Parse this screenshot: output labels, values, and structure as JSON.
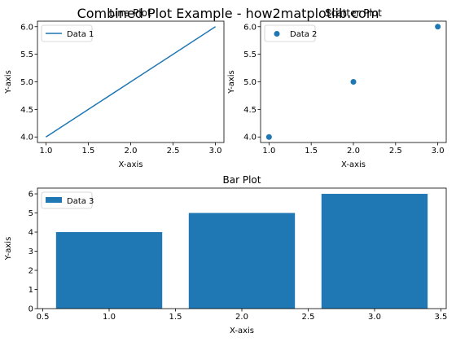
{
  "suptitle": "Combined Plot Example - how2matplotlib.com",
  "chart_data": [
    {
      "type": "line",
      "title": "Line Plot",
      "xlabel": "X-axis",
      "ylabel": "Y-axis",
      "x": [
        1,
        2,
        3
      ],
      "series": [
        {
          "name": "Data 1",
          "values": [
            4,
            5,
            6
          ],
          "color": "#1f77b4"
        }
      ],
      "xlim": [
        0.9,
        3.1
      ],
      "ylim": [
        3.9,
        6.1
      ],
      "xticks": [
        1.0,
        1.5,
        2.0,
        2.5,
        3.0
      ],
      "xtick_labels": [
        "1.0",
        "1.5",
        "2.0",
        "2.5",
        "3.0"
      ],
      "yticks": [
        4.0,
        4.5,
        5.0,
        5.5,
        6.0
      ],
      "ytick_labels": [
        "4.0",
        "4.5",
        "5.0",
        "5.5",
        "6.0"
      ],
      "legend": "top-left",
      "grid": false
    },
    {
      "type": "scatter",
      "title": "Scatter Plot",
      "xlabel": "X-axis",
      "ylabel": "Y-axis",
      "x": [
        1,
        2,
        3
      ],
      "series": [
        {
          "name": "Data 2",
          "values": [
            4,
            5,
            6
          ],
          "color": "#1f77b4"
        }
      ],
      "xlim": [
        0.9,
        3.1
      ],
      "ylim": [
        3.9,
        6.1
      ],
      "xticks": [
        1.0,
        1.5,
        2.0,
        2.5,
        3.0
      ],
      "xtick_labels": [
        "1.0",
        "1.5",
        "2.0",
        "2.5",
        "3.0"
      ],
      "yticks": [
        4.0,
        4.5,
        5.0,
        5.5,
        6.0
      ],
      "ytick_labels": [
        "4.0",
        "4.5",
        "5.0",
        "5.5",
        "6.0"
      ],
      "legend": "top-left",
      "grid": false
    },
    {
      "type": "bar",
      "title": "Bar Plot",
      "xlabel": "X-axis",
      "ylabel": "Y-axis",
      "x": [
        1,
        2,
        3
      ],
      "series": [
        {
          "name": "Data 3",
          "values": [
            4,
            5,
            6
          ],
          "color": "#1f77b4"
        }
      ],
      "bar_width": 0.8,
      "xlim": [
        0.46,
        3.54
      ],
      "ylim": [
        0,
        6.3
      ],
      "xticks": [
        0.5,
        1.0,
        1.5,
        2.0,
        2.5,
        3.0,
        3.5
      ],
      "xtick_labels": [
        "0.5",
        "1.0",
        "1.5",
        "2.0",
        "2.5",
        "3.0",
        "3.5"
      ],
      "yticks": [
        0,
        1,
        2,
        3,
        4,
        5,
        6
      ],
      "ytick_labels": [
        "0",
        "1",
        "2",
        "3",
        "4",
        "5",
        "6"
      ],
      "legend": "top-left",
      "grid": false
    }
  ]
}
